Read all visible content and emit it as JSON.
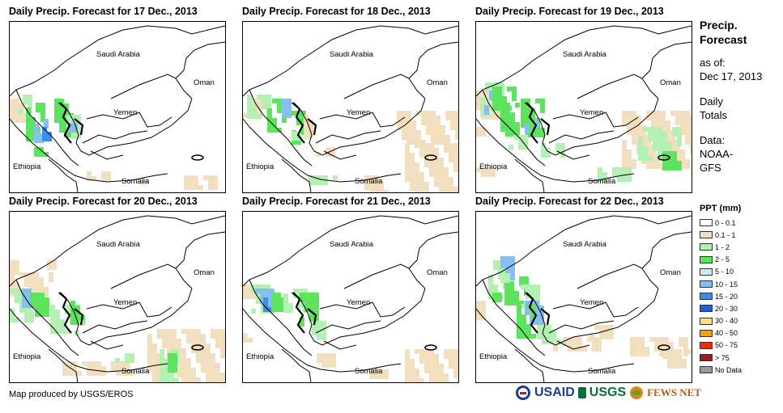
{
  "panels": [
    {
      "title": "Daily Precip. Forecast for 17 Dec., 2013",
      "labels": {
        "saudi": "Saudi Arabia",
        "oman": "Oman",
        "yemen": "Yemen",
        "ethiopia": "Ethiopia",
        "somalia": "Somalia"
      }
    },
    {
      "title": "Daily Precip. Forecast for 18 Dec., 2013",
      "labels": {
        "saudi": "Saudi Arabia",
        "oman": "Oman",
        "yemen": "Yemen",
        "ethiopia": "Ethiopia",
        "somalia": "Somalia"
      }
    },
    {
      "title": "Daily Precip. Forecast for 19 Dec., 2013",
      "labels": {
        "saudi": "Saudi Arabia",
        "oman": "Oman",
        "yemen": "Yemen",
        "ethiopia": "Ethiopia",
        "somalia": "Somalia"
      }
    },
    {
      "title": "Daily Precip. Forecast for 20 Dec., 2013",
      "labels": {
        "saudi": "Saudi Arabia",
        "oman": "Oman",
        "yemen": "Yemen",
        "ethiopia": "Ethiopia",
        "somalia": "Somalia"
      }
    },
    {
      "title": "Daily Precip. Forecast for 21 Dec., 2013",
      "labels": {
        "saudi": "Saudi Arabia",
        "oman": "Oman",
        "yemen": "Yemen",
        "ethiopia": "Ethiopia",
        "somalia": "Somalia"
      }
    },
    {
      "title": "Daily Precip. Forecast for 22 Dec., 2013",
      "labels": {
        "saudi": "Saudi Arabia",
        "oman": "Oman",
        "yemen": "Yemen",
        "ethiopia": "Ethiopia",
        "somalia": "Somalia"
      }
    }
  ],
  "side": {
    "heading1": "Precip.",
    "heading2": "Forecast",
    "asof_label": "as of:",
    "asof_date": "Dec 17, 2013",
    "totals1": "Daily",
    "totals2": "Totals",
    "data_label": "Data:",
    "data_src1": "NOAA-",
    "data_src2": "GFS"
  },
  "legend": {
    "title": "PPT (mm)",
    "items": [
      {
        "label": "0 - 0.1",
        "color": "#ffffff"
      },
      {
        "label": "0.1 - 1",
        "color": "#f2dfbf"
      },
      {
        "label": "1 - 2",
        "color": "#b4f0b4"
      },
      {
        "label": "2 - 5",
        "color": "#5ee35e"
      },
      {
        "label": "5 - 10",
        "color": "#c8ecf8"
      },
      {
        "label": "10 - 15",
        "color": "#87c0f0"
      },
      {
        "label": "15 - 20",
        "color": "#3a8ef0"
      },
      {
        "label": "20 - 30",
        "color": "#1f5fd8"
      },
      {
        "label": "30 - 40",
        "color": "#f8e08a"
      },
      {
        "label": "40 - 50",
        "color": "#f5a300"
      },
      {
        "label": "50 - 75",
        "color": "#e83010"
      },
      {
        "label": "> 75",
        "color": "#a01818"
      },
      {
        "label": "No Data",
        "color": "#999999"
      }
    ]
  },
  "footer": {
    "credit": "Map produced by USGS/EROS"
  },
  "logos": {
    "usaid": "USAID",
    "usgs": "USGS",
    "fewsnet": "FEWS NET"
  }
}
